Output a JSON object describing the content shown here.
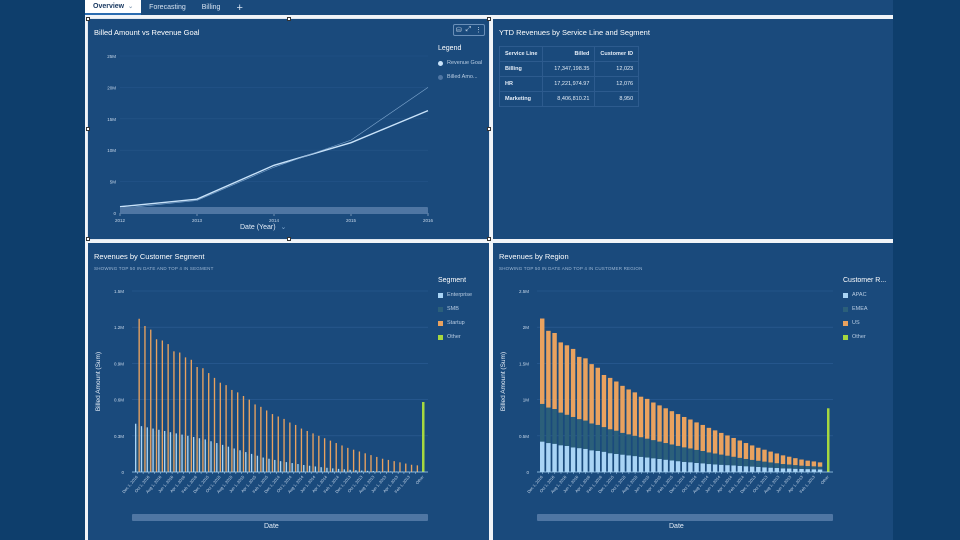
{
  "tabs": [
    {
      "label": "Overview",
      "active": true
    },
    {
      "label": "Forecasting",
      "active": false
    },
    {
      "label": "Billing",
      "active": false
    }
  ],
  "add_tab_icon": "+",
  "panel1": {
    "title": "Billed Amount vs Revenue Goal",
    "toolbar": {
      "filter_icon": "⛁",
      "expand_icon": "⤢",
      "more_icon": "⋮"
    },
    "legend": {
      "title": "Legend",
      "items": [
        "Revenue Goal",
        "Billed Amo..."
      ]
    },
    "xaxis_title": "Date (Year)",
    "chevron": "⌄"
  },
  "panel2": {
    "title": "YTD Revenues by Service Line and Segment",
    "columns": [
      "Service Line",
      "Billed",
      "Customer ID"
    ],
    "rows": [
      [
        "Billing",
        "17,347,198.35",
        "12,023"
      ],
      [
        "HR",
        "17,221,974.97",
        "12,076"
      ],
      [
        "Marketing",
        "8,406,810.21",
        "8,950"
      ]
    ]
  },
  "panel3": {
    "title": "Revenues by Customer Segment",
    "subtitle": "SHOWING TOP 50 IN DATE AND TOP 4 IN SEGMENT",
    "legend": {
      "title": "Segment",
      "items": [
        "Enterprise",
        "SMB",
        "Startup",
        "Other"
      ]
    },
    "ylabel": "Billed Amount (Sum)",
    "xlabel": "Date"
  },
  "panel4": {
    "title": "Revenues by Region",
    "subtitle": "SHOWING TOP 50 IN DATE AND TOP 4 IN CUSTOMER REGION",
    "legend": {
      "title": "Customer R...",
      "items": [
        "APAC",
        "EMEA",
        "US",
        "Other"
      ]
    },
    "ylabel": "Billed Amount (Sum)",
    "xlabel": "Date"
  },
  "colors": {
    "panel_bg": "#1a4a7c",
    "enterprise": "#a9d4f5",
    "smb": "#2b5f7a",
    "startup": "#e9a25f",
    "other": "#a6d83f",
    "line_goal": "#c9e3fa",
    "line_billed": "#7fa7cf"
  },
  "chart_data": [
    {
      "type": "line",
      "title": "Billed Amount vs Revenue Goal",
      "xlabel": "Date (Year)",
      "ylabel": "",
      "x": [
        "2012",
        "2013",
        "2014",
        "2015",
        "2016"
      ],
      "yticks": [
        "0",
        "5M",
        "10M",
        "15M",
        "20M",
        "25M"
      ],
      "ylim": [
        0,
        25000000
      ],
      "series": [
        {
          "name": "Revenue Goal",
          "values": [
            1000000,
            2200000,
            7600000,
            11200000,
            16300000
          ]
        },
        {
          "name": "Billed Amount",
          "values": [
            700000,
            2000000,
            7300000,
            11600000,
            20000000
          ]
        }
      ],
      "legend": "right"
    },
    {
      "type": "bar",
      "stacked": false,
      "title": "Revenues by Customer Segment",
      "xlabel": "Date",
      "ylabel": "Billed Amount (Sum)",
      "yticks": [
        "0",
        "0.3M",
        "0.6M",
        "0.9M",
        "1.2M",
        "1.5M"
      ],
      "ylim": [
        0,
        1500000
      ],
      "x_tick_labels": [
        "Dec 1, 2016",
        "Oct 1, 2016",
        "Aug 1, 2016",
        "Jun 1, 2016",
        "Apr 1, 2016",
        "Feb 1, 2016",
        "Dec 1, 2015",
        "Oct 1, 2015",
        "Aug 1, 2015",
        "Jun 1, 2015",
        "Apr 1, 2015",
        "Feb 1, 2015",
        "Dec 1, 2014",
        "Oct 1, 2014",
        "Aug 1, 2014",
        "Jun 1, 2014",
        "Apr 1, 2014",
        "Feb 1, 2014",
        "Dec 1, 2013",
        "Oct 1, 2013",
        "Aug 1, 2013",
        "Jun 1, 2013",
        "Apr 1, 2013",
        "Feb 1, 2013",
        "Other"
      ],
      "series": [
        {
          "name": "Enterprise",
          "values": [
            400000,
            380000,
            370000,
            360000,
            350000,
            340000,
            330000,
            320000,
            310000,
            300000,
            290000,
            280000,
            270000,
            255000,
            240000,
            225000,
            210000,
            195000,
            180000,
            165000,
            150000,
            135000,
            120000,
            110000,
            100000,
            90000,
            82000,
            74000,
            66000,
            58000,
            52000,
            46000,
            40000,
            35000,
            30000,
            26000,
            22000,
            18000,
            15000,
            12000,
            10000,
            8000,
            7000,
            6000,
            5000,
            4000,
            3500,
            3000,
            2500
          ]
        },
        {
          "name": "SMB",
          "values": [
            380000,
            360000,
            350000,
            340000,
            330000,
            320000,
            310000,
            300000,
            290000,
            280000,
            270000,
            260000,
            250000,
            240000,
            225000,
            210000,
            195000,
            180000,
            165000,
            150000,
            140000,
            128000,
            116000,
            105000,
            95000,
            86000,
            78000,
            70000,
            62000,
            55000,
            49000,
            43000,
            38000,
            33000,
            29000,
            25000,
            21000,
            18000,
            15000,
            12000,
            10000,
            8000,
            7000,
            6000,
            5000,
            4000,
            3500,
            3000,
            2500
          ]
        },
        {
          "name": "Startup",
          "values": [
            1270000,
            1210000,
            1180000,
            1100000,
            1090000,
            1060000,
            1000000,
            990000,
            950000,
            930000,
            870000,
            860000,
            820000,
            780000,
            740000,
            720000,
            680000,
            660000,
            630000,
            600000,
            560000,
            540000,
            510000,
            480000,
            460000,
            440000,
            410000,
            390000,
            360000,
            340000,
            320000,
            300000,
            280000,
            260000,
            240000,
            220000,
            200000,
            185000,
            170000,
            155000,
            140000,
            125000,
            110000,
            100000,
            90000,
            80000,
            70000,
            60000,
            55000
          ]
        },
        {
          "name": "Other",
          "values": [
            580000
          ]
        }
      ],
      "legend": "right"
    },
    {
      "type": "bar",
      "stacked": true,
      "title": "Revenues by Region",
      "xlabel": "Date",
      "ylabel": "Billed Amount (Sum)",
      "yticks": [
        "0",
        "0.5M",
        "1M",
        "1.5M",
        "2M",
        "2.5M"
      ],
      "ylim": [
        0,
        2500000
      ],
      "series": [
        {
          "name": "APAC",
          "values": [
            420000,
            400000,
            390000,
            370000,
            360000,
            340000,
            330000,
            320000,
            300000,
            290000,
            280000,
            260000,
            250000,
            240000,
            230000,
            220000,
            210000,
            200000,
            190000,
            180000,
            170000,
            160000,
            150000,
            140000,
            135000,
            125000,
            120000,
            110000,
            105000,
            100000,
            95000,
            90000,
            85000,
            80000,
            75000,
            70000,
            65000,
            60000,
            55000,
            50000,
            48000,
            45000,
            42000,
            40000,
            38000,
            35000
          ]
        },
        {
          "name": "EMEA",
          "values": [
            520000,
            490000,
            480000,
            450000,
            430000,
            420000,
            400000,
            390000,
            370000,
            360000,
            340000,
            330000,
            320000,
            300000,
            290000,
            280000,
            270000,
            260000,
            250000,
            240000,
            230000,
            220000,
            210000,
            200000,
            190000,
            180000,
            170000,
            160000,
            150000,
            140000,
            130000,
            120000,
            110000,
            100000,
            92000,
            85000,
            78000,
            72000,
            66000,
            60000,
            55000,
            50000,
            45000,
            42000,
            40000,
            38000
          ]
        },
        {
          "name": "US",
          "values": [
            1180000,
            1060000,
            1050000,
            970000,
            960000,
            940000,
            860000,
            860000,
            820000,
            790000,
            720000,
            710000,
            680000,
            650000,
            620000,
            600000,
            560000,
            550000,
            520000,
            500000,
            480000,
            460000,
            440000,
            420000,
            400000,
            380000,
            360000,
            340000,
            320000,
            300000,
            280000,
            260000,
            240000,
            220000,
            200000,
            180000,
            165000,
            150000,
            135000,
            120000,
            108000,
            96000,
            85000,
            75000,
            68000,
            60000
          ]
        },
        {
          "name": "Other",
          "values": [
            880000
          ]
        }
      ],
      "legend": "right"
    }
  ]
}
